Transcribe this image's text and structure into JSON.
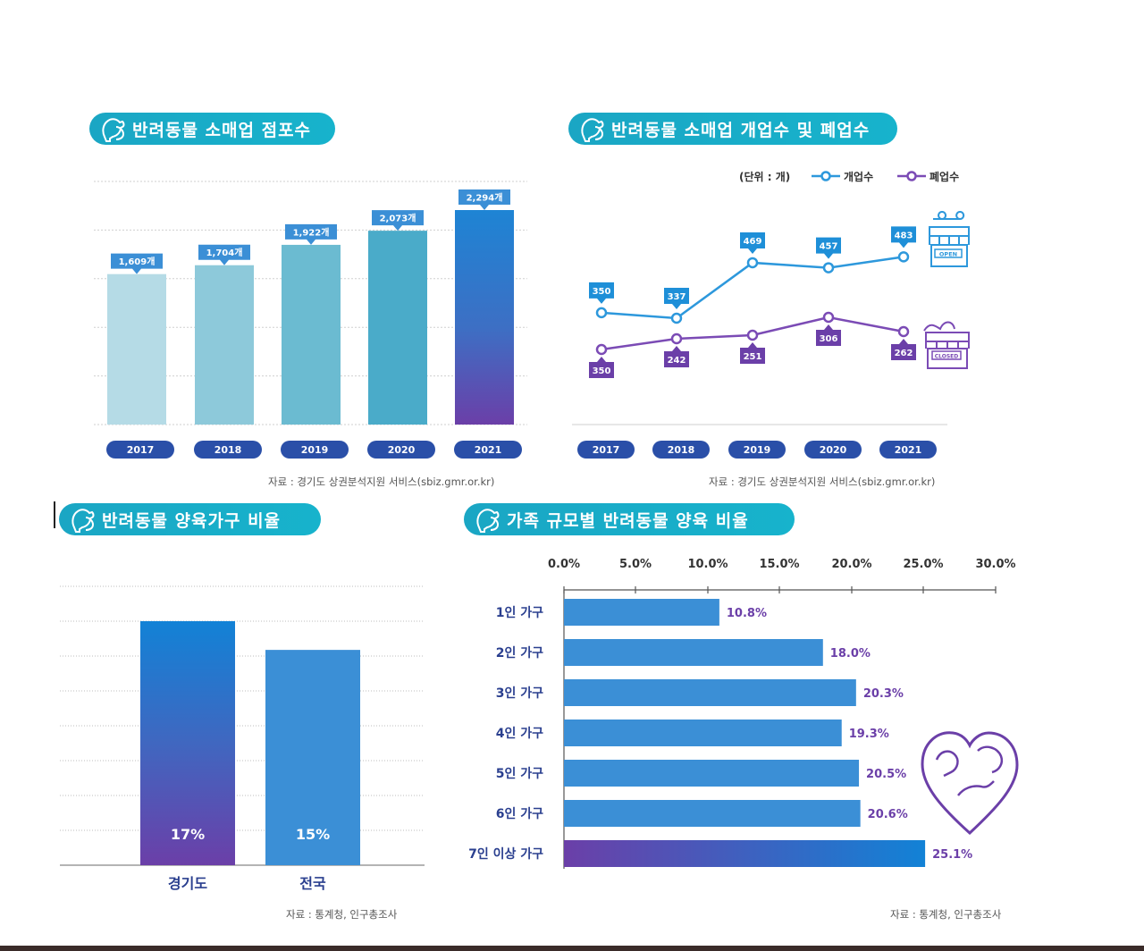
{
  "panels": {
    "stores": {
      "title": "반려동물 소매업 점포수",
      "source": "자료 : 경기도 상권분석지원 서비스(sbiz.gmr.or.kr)"
    },
    "open_close": {
      "title": "반려동물 소매업 개업수 및 폐업수",
      "unit_label": "(단위 : 개)",
      "source": "자료 : 경기도 상권분석지원 서비스(sbiz.gmr.or.kr)",
      "open_sign": "OPEN",
      "closed_sign": "CLOSED"
    },
    "households": {
      "title": "반려동물 양육가구 비율",
      "source": "자료 : 통계청, 인구총조사"
    },
    "family_size": {
      "title": "가족 규모별 반려동물 양육 비율",
      "source": "자료 : 통계청, 인구총조사"
    }
  },
  "colors": {
    "pill": "#1aa6c4",
    "year_badge": "#2a4fa8",
    "open_line": "#2d98dc",
    "close_line": "#7b4bb5",
    "purple": "#6b3fa8",
    "blue": "#3b8fd6",
    "label_text": "#6b3fa8"
  },
  "chart_data": [
    {
      "type": "bar",
      "categories": [
        "2017",
        "2018",
        "2019",
        "2020",
        "2021"
      ],
      "values": [
        1609,
        1704,
        1922,
        2073,
        2294
      ],
      "data_labels": [
        "1,609개",
        "1,704개",
        "1,922개",
        "2,073개",
        "2,294개"
      ],
      "ylim": [
        0,
        2600
      ],
      "grid": true,
      "bar_colors": [
        "#b5dbe6",
        "#8dc9da",
        "#6bbbd1",
        "#4aabc9",
        "#1e84d4"
      ]
    },
    {
      "type": "line",
      "x": [
        "2017",
        "2018",
        "2019",
        "2020",
        "2021"
      ],
      "series": [
        {
          "name": "개업수",
          "values": [
            350,
            337,
            469,
            457,
            483
          ],
          "color": "#2d98dc"
        },
        {
          "name": "폐업수",
          "values": [
            350,
            242,
            251,
            306,
            262
          ],
          "color": "#7b4bb5"
        }
      ],
      "legend": "top-right"
    },
    {
      "type": "bar",
      "categories": [
        "경기도",
        "전국"
      ],
      "values": [
        17,
        15
      ],
      "data_labels": [
        "17%",
        "15%"
      ],
      "ylim": [
        0,
        22
      ],
      "grid": true
    },
    {
      "type": "bar",
      "orientation": "horizontal",
      "categories": [
        "1인 가구",
        "2인 가구",
        "3인 가구",
        "4인 가구",
        "5인 가구",
        "6인 가구",
        "7인 이상 가구"
      ],
      "values": [
        10.8,
        18.0,
        20.3,
        19.3,
        20.5,
        20.6,
        25.1
      ],
      "data_labels": [
        "10.8%",
        "18.0%",
        "20.3%",
        "19.3%",
        "20.5%",
        "20.6%",
        "25.1%"
      ],
      "xticks": [
        "0.0%",
        "5.0%",
        "10.0%",
        "15.0%",
        "20.0%",
        "25.0%",
        "30.0%"
      ],
      "xlim": [
        0,
        30
      ]
    }
  ]
}
